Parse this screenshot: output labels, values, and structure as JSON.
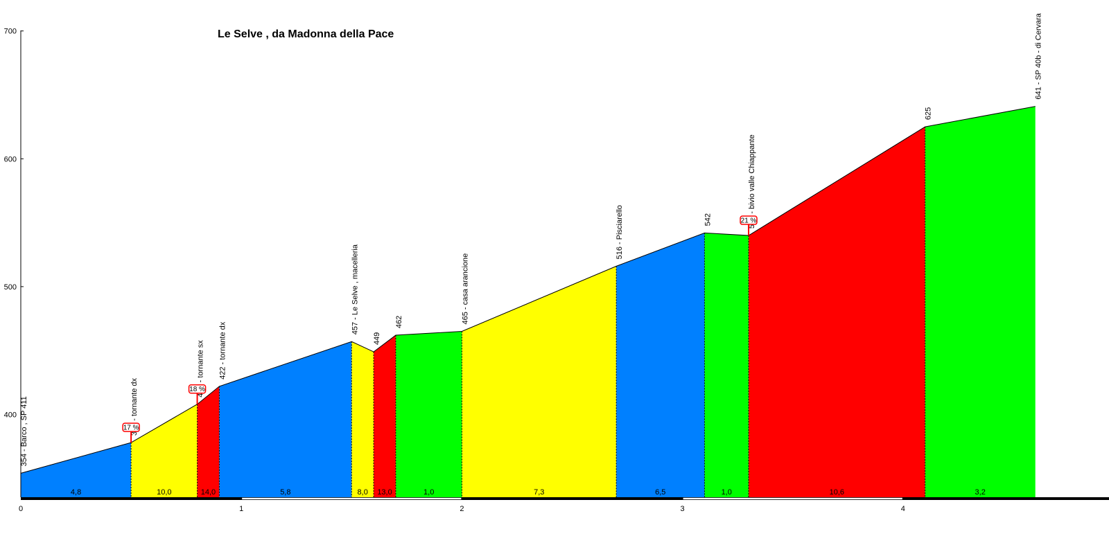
{
  "chart_data": {
    "type": "area",
    "title": "Le Selve , da Madonna della Pace",
    "xlabel": "",
    "ylabel": "",
    "xlim": [
      0,
      4.6
    ],
    "ylim": [
      340,
      700
    ],
    "x_ticks": [
      "0",
      "1",
      "2",
      "3",
      "4"
    ],
    "y_ticks": [
      "400",
      "500",
      "600",
      "700"
    ],
    "x_tick_values": [
      0,
      1,
      2,
      3,
      4
    ],
    "y_tick_values": [
      400,
      500,
      600,
      700
    ],
    "profile": [
      {
        "x": 0.0,
        "y": 354
      },
      {
        "x": 0.5,
        "y": 378
      },
      {
        "x": 0.8,
        "y": 408
      },
      {
        "x": 0.9,
        "y": 422
      },
      {
        "x": 1.5,
        "y": 457
      },
      {
        "x": 1.6,
        "y": 449
      },
      {
        "x": 1.7,
        "y": 462
      },
      {
        "x": 2.0,
        "y": 465
      },
      {
        "x": 2.7,
        "y": 516
      },
      {
        "x": 3.1,
        "y": 542
      },
      {
        "x": 3.3,
        "y": 540
      },
      {
        "x": 4.1,
        "y": 625
      },
      {
        "x": 4.6,
        "y": 641
      }
    ],
    "segments": [
      {
        "grade": "4,8",
        "color": "#0080ff"
      },
      {
        "grade": "10,0",
        "color": "#ffff00"
      },
      {
        "grade": "14,0",
        "color": "#ff0000"
      },
      {
        "grade": "5,8",
        "color": "#0080ff"
      },
      {
        "grade": "8,0",
        "color": "#ffff00"
      },
      {
        "grade": "13,0",
        "color": "#ff0000"
      },
      {
        "grade": "1,0",
        "color": "#00ff00"
      },
      {
        "grade": "7,3",
        "color": "#ffff00"
      },
      {
        "grade": "6,5",
        "color": "#0080ff"
      },
      {
        "grade": "1,0",
        "color": "#00ff00"
      },
      {
        "grade": "10,6",
        "color": "#ff0000"
      },
      {
        "grade": "3,2",
        "color": "#00ff00"
      }
    ],
    "annotations": [
      {
        "point": 0,
        "text": "354 - Barco , SP 411"
      },
      {
        "point": 1,
        "text": "378 - tornante dx"
      },
      {
        "point": 2,
        "text": "408 - tornante sx"
      },
      {
        "point": 3,
        "text": "422 - tornante dx"
      },
      {
        "point": 4,
        "text": "457 - Le Selve , macelleria"
      },
      {
        "point": 5,
        "text": "449"
      },
      {
        "point": 6,
        "text": "462"
      },
      {
        "point": 7,
        "text": "465 - casa arancione"
      },
      {
        "point": 8,
        "text": "516 - Pisciarello"
      },
      {
        "point": 9,
        "text": "542"
      },
      {
        "point": 10,
        "text": "540 - bivio valle Chiappante"
      },
      {
        "point": 11,
        "text": "625"
      },
      {
        "point": 12,
        "text": "641 - SP 40b - di Cervara"
      }
    ],
    "max_grade_flags": [
      {
        "point": 1,
        "text": "17 %"
      },
      {
        "point": 2,
        "text": "18 %"
      },
      {
        "point": 10,
        "text": "21 %"
      }
    ],
    "grid": false,
    "colors": {
      "blue": "#0080ff",
      "yellow": "#ffff00",
      "red": "#ff0000",
      "green": "#00ff00",
      "flag_border": "#ff0000"
    }
  }
}
